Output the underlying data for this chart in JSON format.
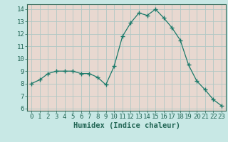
{
  "x": [
    0,
    1,
    2,
    3,
    4,
    5,
    6,
    7,
    8,
    9,
    10,
    11,
    12,
    13,
    14,
    15,
    16,
    17,
    18,
    19,
    20,
    21,
    22,
    23
  ],
  "y": [
    8.0,
    8.3,
    8.8,
    9.0,
    9.0,
    9.0,
    8.8,
    8.8,
    8.5,
    7.9,
    9.4,
    11.8,
    12.9,
    13.7,
    13.5,
    14.0,
    13.3,
    12.5,
    11.5,
    9.5,
    8.2,
    7.5,
    6.7,
    6.2
  ],
  "line_color": "#1a7a6a",
  "marker": "+",
  "marker_size": 4,
  "bg_color": "#c8e8e5",
  "plot_bg_color": "#e8d8d0",
  "grid_color": "#b0c8c5",
  "xlabel": "Humidex (Indice chaleur)",
  "xlabel_fontsize": 7.5,
  "xlim": [
    -0.5,
    23.5
  ],
  "ylim": [
    5.8,
    14.4
  ],
  "yticks": [
    6,
    7,
    8,
    9,
    10,
    11,
    12,
    13,
    14
  ],
  "xticks": [
    0,
    1,
    2,
    3,
    4,
    5,
    6,
    7,
    8,
    9,
    10,
    11,
    12,
    13,
    14,
    15,
    16,
    17,
    18,
    19,
    20,
    21,
    22,
    23
  ],
  "tick_fontsize": 6.5,
  "axis_color": "#226655",
  "spine_color": "#336655"
}
